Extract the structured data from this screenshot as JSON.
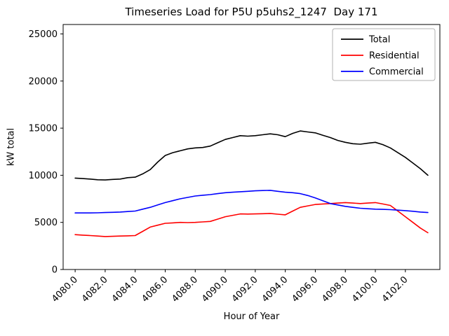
{
  "figure": {
    "background": "#ffffff"
  },
  "chart_data": {
    "type": "line",
    "title": "Timeseries Load for P5U p5uhs2_1247  Day 171",
    "xlabel": "Hour of Year",
    "ylabel": "kW total",
    "grid": false,
    "xlim": [
      4079.2,
      4104.3
    ],
    "ylim": [
      0,
      26000
    ],
    "yticks": [
      0,
      5000,
      10000,
      15000,
      20000,
      25000
    ],
    "ytick_labels": [
      "0",
      "5000",
      "10000",
      "15000",
      "20000",
      "25000"
    ],
    "xticks": [
      4080,
      4082,
      4084,
      4086,
      4088,
      4090,
      4092,
      4094,
      4096,
      4098,
      4100,
      4102
    ],
    "xtick_labels": [
      "4080.0",
      "4082.0",
      "4084.0",
      "4086.0",
      "4088.0",
      "4090.0",
      "4092.0",
      "4094.0",
      "4096.0",
      "4098.0",
      "4100.0",
      "4102.0"
    ],
    "legend": {
      "position": "upper right",
      "entries": [
        {
          "label": "Total",
          "color": "#000000"
        },
        {
          "label": "Residential",
          "color": "#ff0000"
        },
        {
          "label": "Commercial",
          "color": "#0000ff"
        }
      ]
    },
    "x": [
      4080.0,
      4080.5,
      4081.0,
      4081.5,
      4082.0,
      4082.5,
      4083.0,
      4083.5,
      4084.0,
      4084.5,
      4085.0,
      4085.5,
      4086.0,
      4086.5,
      4087.0,
      4087.5,
      4088.0,
      4088.5,
      4089.0,
      4089.5,
      4090.0,
      4090.5,
      4091.0,
      4091.5,
      4092.0,
      4092.5,
      4093.0,
      4093.5,
      4094.0,
      4094.5,
      4095.0,
      4095.5,
      4096.0,
      4096.5,
      4097.0,
      4097.5,
      4098.0,
      4098.5,
      4099.0,
      4099.5,
      4100.0,
      4100.5,
      4101.0,
      4101.5,
      4102.0,
      4102.5,
      4103.0,
      4103.5
    ],
    "series": [
      {
        "name": "Total",
        "color": "#000000",
        "values": [
          9700,
          9650,
          9600,
          9520,
          9500,
          9560,
          9600,
          9750,
          9800,
          10150,
          10600,
          11400,
          12100,
          12400,
          12600,
          12800,
          12900,
          12950,
          13100,
          13450,
          13800,
          14000,
          14200,
          14150,
          14200,
          14300,
          14400,
          14300,
          14100,
          14450,
          14700,
          14600,
          14500,
          14250,
          14000,
          13700,
          13500,
          13350,
          13300,
          13400,
          13500,
          13250,
          12900,
          12400,
          11900,
          11300,
          10700,
          10000
        ]
      },
      {
        "name": "Residential",
        "color": "#ff0000",
        "values": [
          3700,
          3650,
          3600,
          3550,
          3500,
          3520,
          3550,
          3570,
          3600,
          4050,
          4500,
          4700,
          4900,
          4950,
          5000,
          4980,
          5000,
          5050,
          5100,
          5350,
          5600,
          5750,
          5900,
          5880,
          5900,
          5920,
          5950,
          5870,
          5800,
          6200,
          6600,
          6750,
          6900,
          6950,
          7000,
          7050,
          7100,
          7050,
          7000,
          7050,
          7100,
          6950,
          6800,
          6200,
          5600,
          5000,
          4400,
          3900
        ]
      },
      {
        "name": "Commercial",
        "color": "#0000ff",
        "values": [
          6000,
          6000,
          6000,
          6020,
          6050,
          6070,
          6100,
          6150,
          6200,
          6400,
          6600,
          6850,
          7100,
          7300,
          7500,
          7650,
          7800,
          7880,
          7950,
          8050,
          8150,
          8200,
          8250,
          8300,
          8350,
          8380,
          8400,
          8300,
          8200,
          8150,
          8050,
          7850,
          7600,
          7300,
          7000,
          6850,
          6700,
          6600,
          6500,
          6450,
          6400,
          6380,
          6350,
          6300,
          6250,
          6180,
          6100,
          6050
        ]
      }
    ]
  }
}
